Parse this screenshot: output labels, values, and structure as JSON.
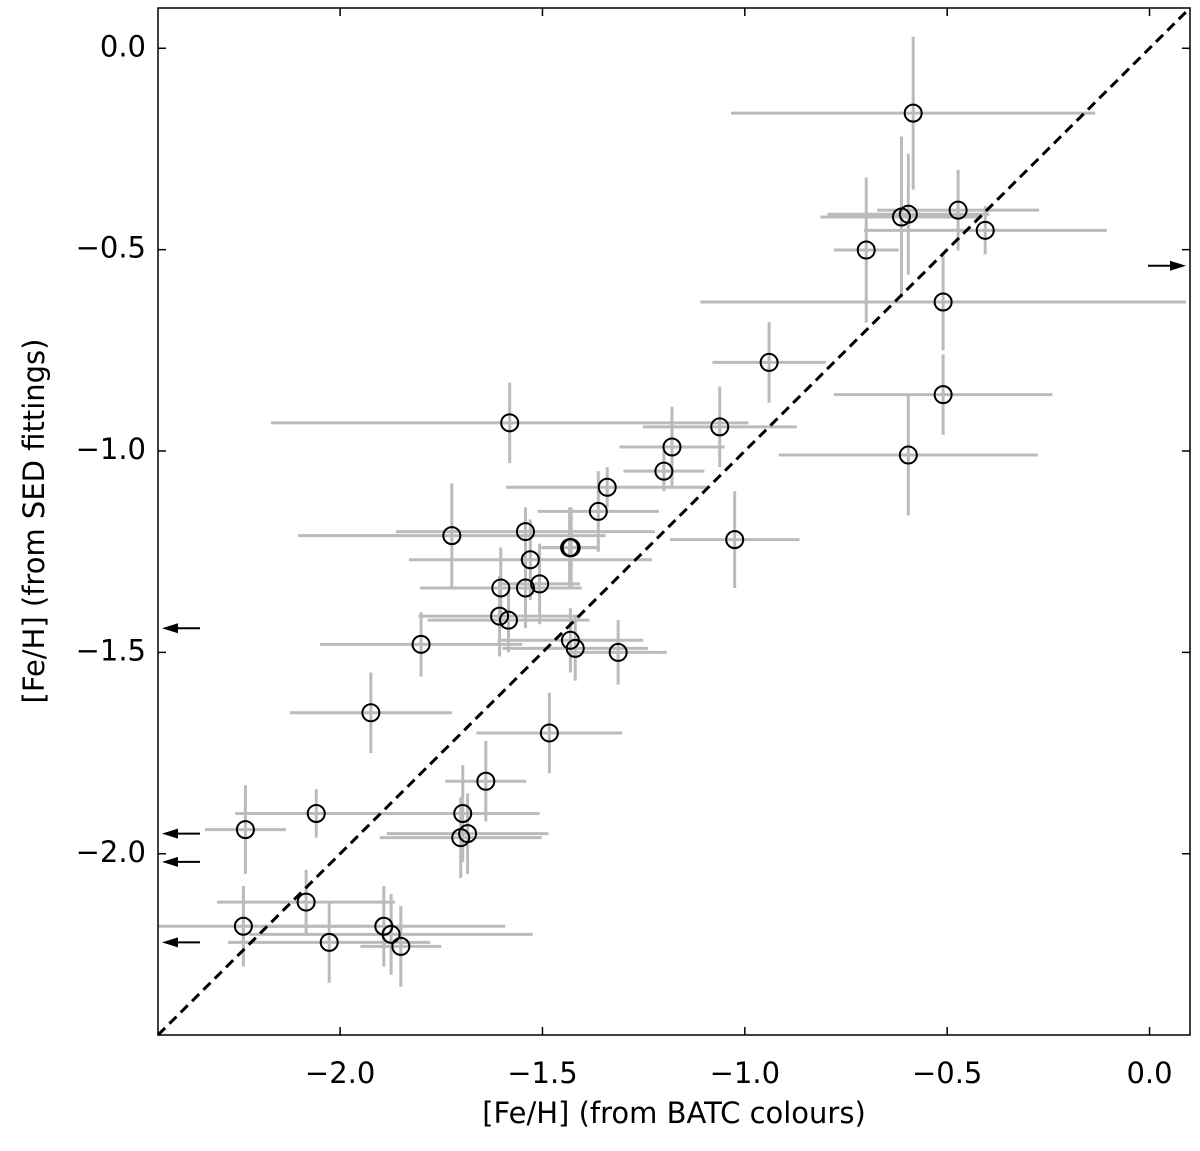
{
  "chart_data": {
    "type": "scatter",
    "x_label": "[Fe/H] (from BATC colours)",
    "y_label": "[Fe/H] (from SED fittings)",
    "xlim": [
      -2.45,
      0.1
    ],
    "ylim": [
      -2.45,
      0.1
    ],
    "xticks": [
      {
        "value": -2.0,
        "label": "−2.0"
      },
      {
        "value": -1.5,
        "label": "−1.5"
      },
      {
        "value": -1.0,
        "label": "−1.0"
      },
      {
        "value": -0.5,
        "label": "−0.5"
      },
      {
        "value": 0,
        "label": "0.0"
      }
    ],
    "yticks": [
      {
        "value": 0,
        "label": "0.0"
      },
      {
        "value": -0.5,
        "label": "−0.5"
      },
      {
        "value": -1.0,
        "label": "−1.0"
      },
      {
        "value": -1.5,
        "label": "−1.5"
      },
      {
        "value": -2.0,
        "label": "−2.0"
      }
    ],
    "identity_line": true,
    "marker_color": "#000000",
    "error_color": "#bbbbbb",
    "x": [
      -0.584,
      -0.473,
      -0.596,
      -0.613,
      -0.406,
      -0.7,
      -0.51,
      -0.94,
      -0.51,
      -0.596,
      -1.581,
      -1.062,
      -1.18,
      -1.2,
      -1.34,
      -1.362,
      -1.025,
      -1.724,
      -1.542,
      -1.429,
      -1.433,
      -1.53,
      -1.507,
      -1.542,
      -1.603,
      -1.606,
      -1.584,
      -1.8,
      -1.431,
      -1.419,
      -1.313,
      -1.924,
      -1.483,
      -1.64,
      -2.059,
      -1.697,
      -2.234,
      -1.685,
      -1.702,
      -2.084,
      -2.239,
      -1.892,
      -1.874,
      -2.027,
      -1.85
    ],
    "y": [
      -0.161,
      -0.402,
      -0.412,
      -0.419,
      -0.452,
      -0.501,
      -0.63,
      -0.78,
      -0.86,
      -1.01,
      -0.93,
      -0.94,
      -0.99,
      -1.05,
      -1.09,
      -1.15,
      -1.22,
      -1.21,
      -1.2,
      -1.24,
      -1.24,
      -1.27,
      -1.33,
      -1.34,
      -1.34,
      -1.41,
      -1.42,
      -1.48,
      -1.47,
      -1.49,
      -1.5,
      -1.65,
      -1.7,
      -1.82,
      -1.9,
      -1.9,
      -1.94,
      -1.95,
      -1.96,
      -2.12,
      -2.18,
      -2.18,
      -2.2,
      -2.22,
      -2.23
    ],
    "xerr": [
      0.45,
      0.2,
      0.2,
      0.2,
      0.3,
      0.08,
      0.6,
      0.14,
      0.27,
      0.32,
      0.59,
      0.19,
      0.13,
      0.1,
      0.25,
      0.15,
      0.16,
      0.38,
      0.32,
      0.07,
      0.07,
      0.3,
      0.1,
      0.1,
      0.2,
      0.2,
      0.2,
      0.25,
      0.18,
      0.18,
      0.12,
      0.2,
      0.18,
      0.1,
      0.2,
      0.19,
      0.1,
      0.2,
      0.2,
      0.22,
      0.3,
      0.3,
      0.35,
      0.25,
      0.1
    ],
    "yerr": [
      0.19,
      0.1,
      0.15,
      0.2,
      0.06,
      0.18,
      0.12,
      0.1,
      0.1,
      0.15,
      0.1,
      0.1,
      0.1,
      0.05,
      0.05,
      0.1,
      0.12,
      0.13,
      0.06,
      0.1,
      0.1,
      0.1,
      0.1,
      0.1,
      0.1,
      0.1,
      0.08,
      0.08,
      0.08,
      0.08,
      0.08,
      0.1,
      0.1,
      0.1,
      0.06,
      0.12,
      0.11,
      0.1,
      0.1,
      0.08,
      0.1,
      0.1,
      0.1,
      0.1,
      0.1
    ],
    "left_arrows_y": [
      -1.44,
      -1.95,
      -2.02,
      -2.22
    ],
    "right_arrows_y": [
      -0.54
    ]
  }
}
